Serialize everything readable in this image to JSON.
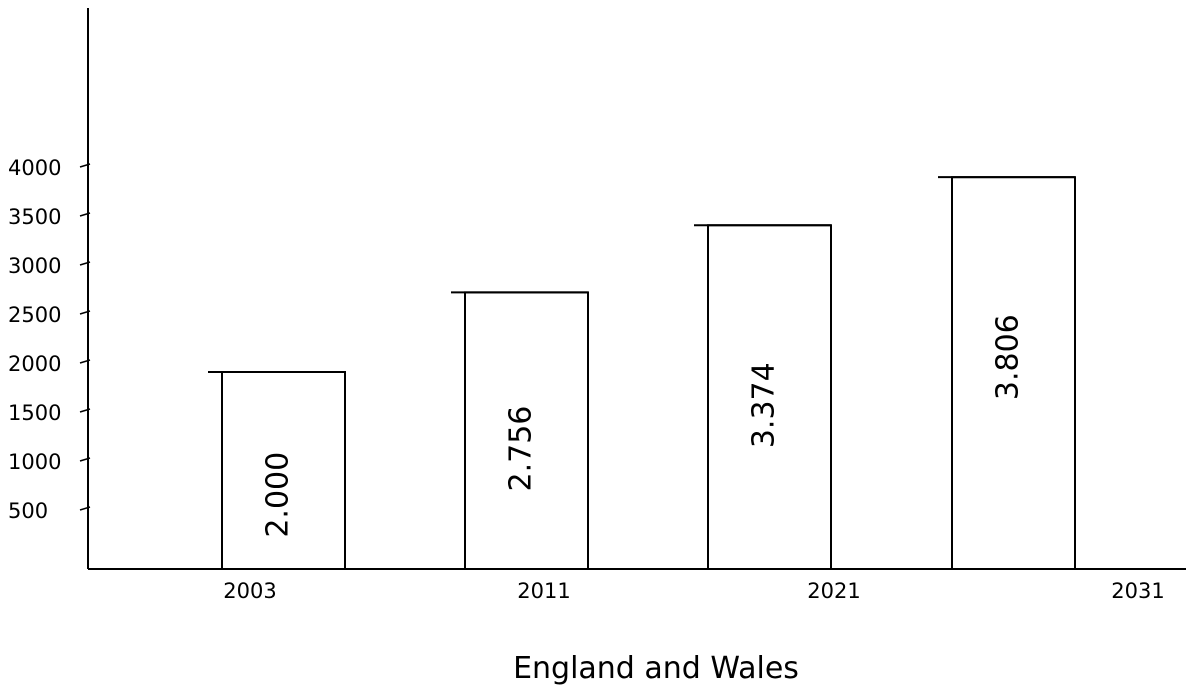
{
  "chart_data": {
    "type": "bar",
    "title": "",
    "xlabel": "England and Wales",
    "ylabel": "",
    "x_ticks": [
      "2003",
      "2011",
      "2021",
      "2031"
    ],
    "y_ticks": [
      "500",
      "1000",
      "1500",
      "2000",
      "2500",
      "3000",
      "3500",
      "4000"
    ],
    "categories": [
      "2003",
      "2011",
      "2021",
      "2031"
    ],
    "values": [
      2000,
      2756,
      3374,
      3806
    ],
    "value_labels": [
      "2.000",
      "2.756",
      "3.374",
      "3.806"
    ],
    "ylim": [
      0,
      4000
    ],
    "grid": false,
    "legend": "none",
    "colors": {
      "bar_fill": "#ffffff",
      "bar_stroke": "#000000",
      "axis": "#000000",
      "text": "#000000"
    }
  }
}
